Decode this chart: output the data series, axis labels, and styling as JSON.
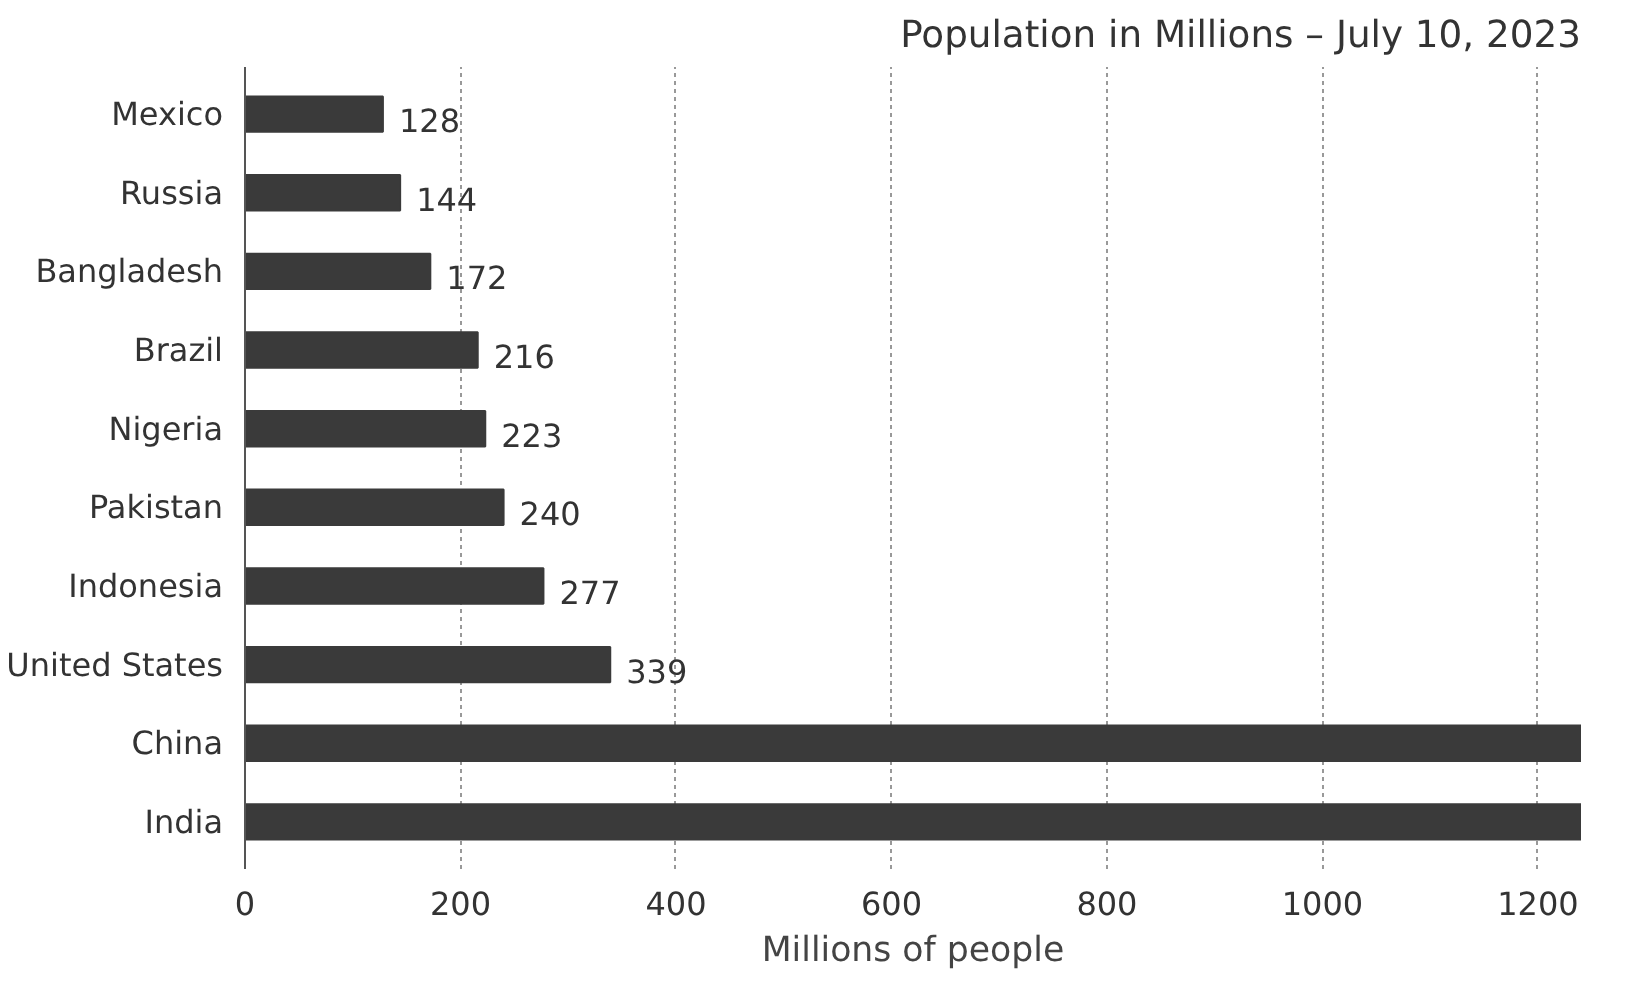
{
  "chart_data": {
    "type": "bar",
    "orientation": "horizontal",
    "title": "Population in Millions – July 10, 2023",
    "xlabel": "Millions of people",
    "categories": [
      "Mexico",
      "Russia",
      "Bangladesh",
      "Brazil",
      "Nigeria",
      "Pakistan",
      "Indonesia",
      "United States",
      "China",
      "India"
    ],
    "values": [
      128,
      144,
      172,
      216,
      223,
      240,
      277,
      339,
      1240,
      1240
    ],
    "value_labels": [
      "128",
      "144",
      "172",
      "216",
      "223",
      "240",
      "277",
      "339",
      null,
      null
    ],
    "color": "#3a3a3a",
    "xlim": [
      0,
      1240
    ],
    "xticks": [
      0,
      200,
      400,
      600,
      800,
      1000,
      1200
    ],
    "grid": "x"
  }
}
